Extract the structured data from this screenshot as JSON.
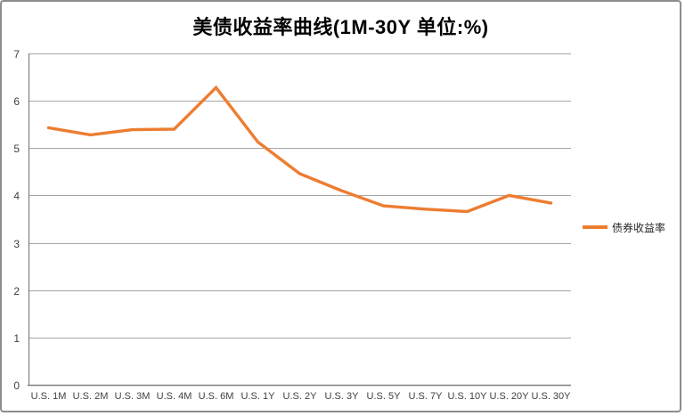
{
  "title": "美债收益率曲线(1M-30Y 单位:%)",
  "chart_data": {
    "type": "line",
    "title": "美债收益率曲线(1M-30Y 单位:%)",
    "categories": [
      "U.S. 1M",
      "U.S. 2M",
      "U.S. 3M",
      "U.S. 4M",
      "U.S. 6M",
      "U.S. 1Y",
      "U.S. 2Y",
      "U.S. 3Y",
      "U.S. 5Y",
      "U.S. 7Y",
      "U.S. 10Y",
      "U.S. 20Y",
      "U.S. 30Y"
    ],
    "series": [
      {
        "name": "债券收益率",
        "color": "#ED7D31",
        "values": [
          5.43,
          5.28,
          5.39,
          5.4,
          6.28,
          5.13,
          4.46,
          4.1,
          3.78,
          3.71,
          3.66,
          4.0,
          3.84
        ]
      }
    ],
    "xlabel": "",
    "ylabel": "",
    "ylim": [
      0,
      7
    ],
    "yticks": [
      0,
      1,
      2,
      3,
      4,
      5,
      6,
      7
    ],
    "grid": "horizontal",
    "legend_position": "right"
  },
  "colors": {
    "line": "#ED7D31",
    "gridline": "#A6A6A6",
    "axis": "#808080",
    "frame_border": "#8C8C8C",
    "tick_text": "#404040",
    "title_text": "#000000",
    "background": "#FFFFFF"
  }
}
